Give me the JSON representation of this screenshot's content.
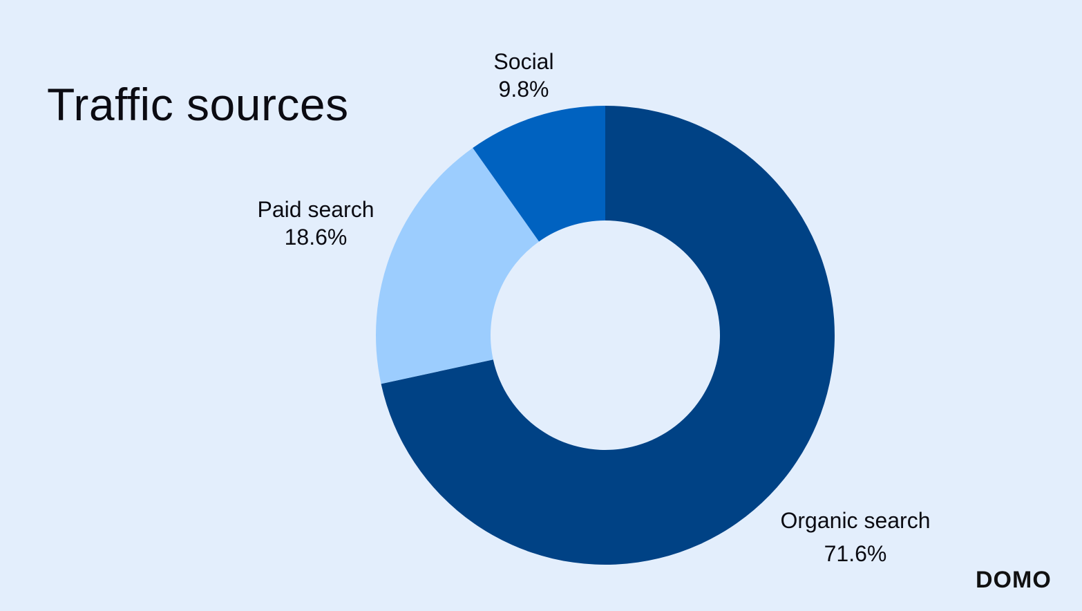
{
  "chart_data": {
    "type": "pie",
    "subtype": "donut",
    "title": "Traffic sources",
    "slices": [
      {
        "label": "Organic search",
        "value": 71.6,
        "value_label": "71.6%",
        "color": "#004285"
      },
      {
        "label": "Paid search",
        "value": 18.6,
        "value_label": "18.6%",
        "color": "#9ccdfe"
      },
      {
        "label": "Social",
        "value": 9.8,
        "value_label": "9.8%",
        "color": "#0062c0"
      }
    ],
    "start_angle_deg": 0,
    "direction": "clockwise",
    "legend": "none",
    "background": "#e3eefc"
  },
  "brand": {
    "logo_text": "DOMO"
  }
}
